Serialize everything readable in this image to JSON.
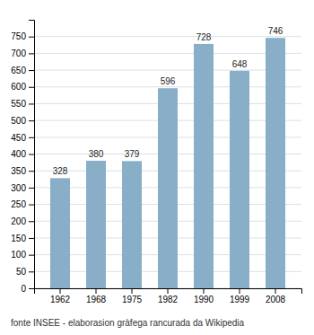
{
  "chart_data": {
    "type": "bar",
    "categories": [
      "1962",
      "1968",
      "1975",
      "1982",
      "1990",
      "1999",
      "2008"
    ],
    "values": [
      328,
      380,
      379,
      596,
      728,
      648,
      746
    ],
    "color": "#89aec8",
    "ylim": [
      0,
      800
    ],
    "yticks": [
      0,
      50,
      100,
      150,
      200,
      250,
      300,
      350,
      400,
      450,
      500,
      550,
      600,
      650,
      700,
      750
    ],
    "grid": true,
    "data_labels": true,
    "caption": "fonte INSEE - elaborasion gràfega rancurada da Wikipedia"
  }
}
